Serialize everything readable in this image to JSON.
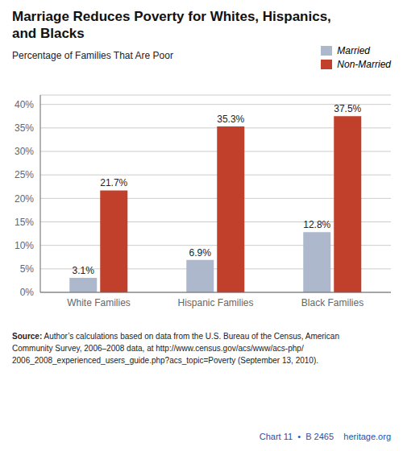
{
  "chart_data": {
    "type": "bar",
    "title": "Marriage Reduces Poverty for Whites, Hispanics,\nand Blacks",
    "subtitle": "Percentage of Families That Are Poor",
    "categories": [
      "White Families",
      "Hispanic Families",
      "Black Families"
    ],
    "series": [
      {
        "name": "Married",
        "color": "#aeb8cc",
        "values": [
          3.1,
          6.9,
          12.8
        ],
        "value_labels": [
          "3.1%",
          "6.9%",
          "12.8%"
        ]
      },
      {
        "name": "Non-Married",
        "color": "#c0402b",
        "values": [
          21.7,
          35.3,
          37.5
        ],
        "value_labels": [
          "21.7%",
          "35.3%",
          "37.5%"
        ]
      }
    ],
    "ylim": [
      0,
      42
    ],
    "yticks": [
      {
        "value": 0,
        "label": "0%"
      },
      {
        "value": 5,
        "label": "5%"
      },
      {
        "value": 10,
        "label": "10%"
      },
      {
        "value": 15,
        "label": "15%"
      },
      {
        "value": 20,
        "label": "20%"
      },
      {
        "value": 25,
        "label": "25%"
      },
      {
        "value": 30,
        "label": "30%"
      },
      {
        "value": 35,
        "label": "35%"
      },
      {
        "value": 40,
        "label": "40%"
      }
    ],
    "grid": true,
    "legend": "upper right",
    "data_labels": true,
    "source": "Source: Author’s calculations based on data from the U.S. Bureau of the Census, American\nCommunity Survey, 2006–2008 data, at http://www.census.gov/acs/www/acs-php/\n2006_2008_experienced_users_guide.php?acs_topic=Poverty (September 13, 2010).",
    "footer": "Chart 11  •  B 2465    heritage.org"
  }
}
